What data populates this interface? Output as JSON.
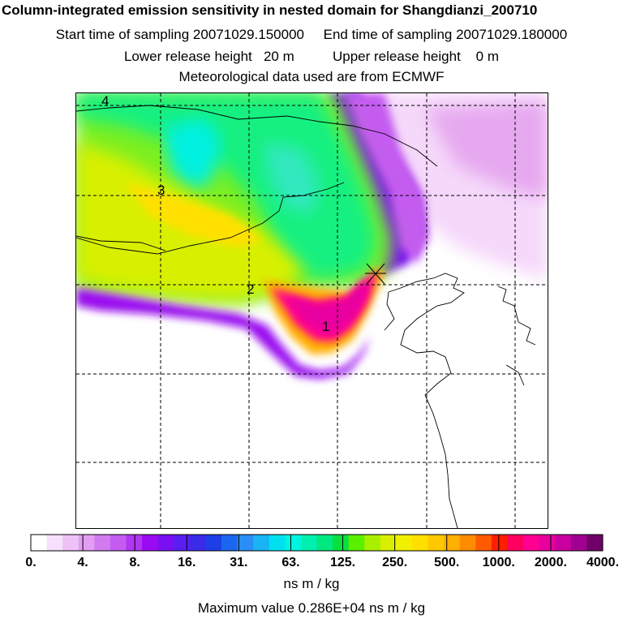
{
  "header": {
    "title": "Column-integrated emission sensitivity in nested domain for Shangdianzi_200710",
    "time_line": "Start time of sampling 20071029.150000     End time of sampling 20071029.180000",
    "height_line": "Lower release height   20 m          Upper release height    0 m",
    "met_line": "Meteorological data used are from ECMWF"
  },
  "map": {
    "grid": "on",
    "markers": [
      {
        "label": "1",
        "kind": "backtrajectory-day"
      },
      {
        "label": "2",
        "kind": "backtrajectory-day"
      },
      {
        "label": "3",
        "kind": "backtrajectory-day"
      },
      {
        "label": "4",
        "kind": "backtrajectory-day"
      }
    ],
    "receptor_icon": "asterisk-icon"
  },
  "legend": {
    "tick_labels": [
      "0.",
      "4.",
      "8.",
      "16.",
      "31.",
      "63.",
      "125.",
      "250.",
      "500.",
      "1000.",
      "2000.",
      "4000."
    ],
    "colors": [
      "#ffffff",
      "#f7e0fb",
      "#efc2f7",
      "#e39ef2",
      "#d27bef",
      "#c45cf0",
      "#b235f2",
      "#9a0af0",
      "#7a10f2",
      "#5a1ef2",
      "#3b2ae8",
      "#1e3ee6",
      "#1a66f0",
      "#2a8ef6",
      "#19b4f4",
      "#00e0f0",
      "#00f5e0",
      "#00f0b0",
      "#00e880",
      "#08e040",
      "#5af000",
      "#a8f000",
      "#d8f000",
      "#f0f000",
      "#ffe000",
      "#ffc800",
      "#ffb000",
      "#ff8c00",
      "#ff5a00",
      "#ff1e00",
      "#ff0060",
      "#ff0090",
      "#e800a0",
      "#c800a0",
      "#a00090",
      "#700068"
    ],
    "units": "ns m / kg",
    "max_value": "Maximum value  0.286E+04 ns m / kg"
  }
}
